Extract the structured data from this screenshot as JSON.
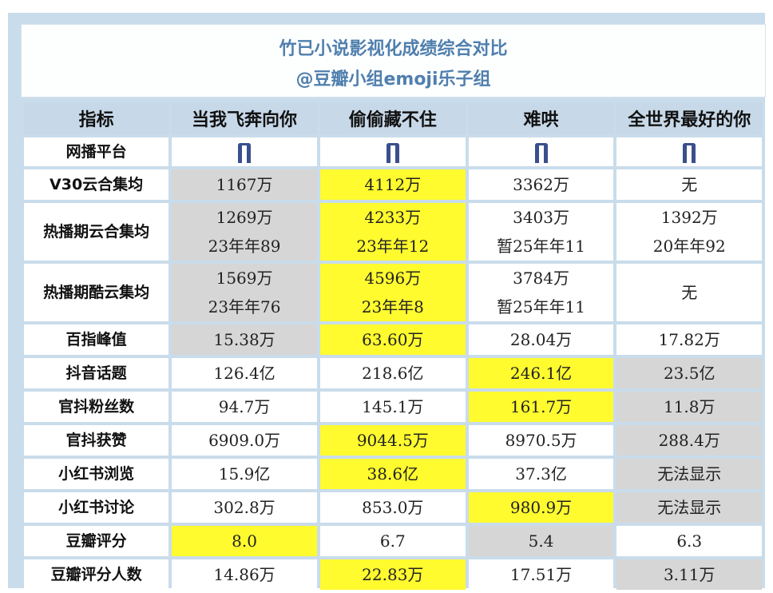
{
  "title": {
    "line1": "竹已小说影视化成绩综合对比",
    "line2": "@豆瓣小组emoji乐子组"
  },
  "headers": [
    "指标",
    "当我飞奔向你",
    "偷偷藏不住",
    "难哄",
    "全世界最好的你"
  ],
  "platform_icon": "tencent-video-icon",
  "colors": {
    "header_bg": "#c7d8e8",
    "frame_bg": "#c9dceb",
    "title_text": "#4f7fae",
    "highlight_best": "#fffb2e",
    "highlight_worst": "#d6d6d6"
  },
  "rows": [
    {
      "metric": "网播平台",
      "cells": [
        {
          "icon": true
        },
        {
          "icon": true
        },
        {
          "icon": true
        },
        {
          "icon": true
        }
      ]
    },
    {
      "metric": "V30云合集均",
      "cells": [
        {
          "lines": [
            "1167万"
          ],
          "hl": "gray"
        },
        {
          "lines": [
            "4112万"
          ],
          "hl": "yellow"
        },
        {
          "lines": [
            "3362万"
          ]
        },
        {
          "lines": [
            "无"
          ]
        }
      ]
    },
    {
      "metric": "热播期云合集均",
      "cells": [
        {
          "lines": [
            "1269万",
            "23年年89"
          ],
          "hl": "gray"
        },
        {
          "lines": [
            "4233万",
            "23年年12"
          ],
          "hl": "yellow"
        },
        {
          "lines": [
            "3403万",
            "暂25年年11"
          ]
        },
        {
          "lines": [
            "1392万",
            "20年年92"
          ]
        }
      ]
    },
    {
      "metric": "热播期酷云集均",
      "cells": [
        {
          "lines": [
            "1569万",
            "23年年76"
          ],
          "hl": "gray"
        },
        {
          "lines": [
            "4596万",
            "23年年8"
          ],
          "hl": "yellow"
        },
        {
          "lines": [
            "3784万",
            "暂25年年11"
          ]
        },
        {
          "lines": [
            "无"
          ]
        }
      ]
    },
    {
      "metric": "百指峰值",
      "cells": [
        {
          "lines": [
            "15.38万"
          ],
          "hl": "gray"
        },
        {
          "lines": [
            "63.60万"
          ],
          "hl": "yellow"
        },
        {
          "lines": [
            "28.04万"
          ]
        },
        {
          "lines": [
            "17.82万"
          ]
        }
      ]
    },
    {
      "metric": "抖音话题",
      "cells": [
        {
          "lines": [
            "126.4亿"
          ]
        },
        {
          "lines": [
            "218.6亿"
          ]
        },
        {
          "lines": [
            "246.1亿"
          ],
          "hl": "yellow"
        },
        {
          "lines": [
            "23.5亿"
          ],
          "hl": "gray"
        }
      ]
    },
    {
      "metric": "官抖粉丝数",
      "cells": [
        {
          "lines": [
            "94.7万"
          ]
        },
        {
          "lines": [
            "145.1万"
          ]
        },
        {
          "lines": [
            "161.7万"
          ],
          "hl": "yellow"
        },
        {
          "lines": [
            "11.8万"
          ],
          "hl": "gray"
        }
      ]
    },
    {
      "metric": "官抖获赞",
      "cells": [
        {
          "lines": [
            "6909.0万"
          ]
        },
        {
          "lines": [
            "9044.5万"
          ],
          "hl": "yellow"
        },
        {
          "lines": [
            "8970.5万"
          ]
        },
        {
          "lines": [
            "288.4万"
          ],
          "hl": "gray"
        }
      ]
    },
    {
      "metric": "小红书浏览",
      "cells": [
        {
          "lines": [
            "15.9亿"
          ]
        },
        {
          "lines": [
            "38.6亿"
          ],
          "hl": "yellow"
        },
        {
          "lines": [
            "37.3亿"
          ]
        },
        {
          "lines": [
            "无法显示"
          ],
          "hl": "gray"
        }
      ]
    },
    {
      "metric": "小红书讨论",
      "cells": [
        {
          "lines": [
            "302.8万"
          ]
        },
        {
          "lines": [
            "853.0万"
          ]
        },
        {
          "lines": [
            "980.9万"
          ],
          "hl": "yellow"
        },
        {
          "lines": [
            "无法显示"
          ],
          "hl": "gray"
        }
      ]
    },
    {
      "metric": "豆瓣评分",
      "cells": [
        {
          "lines": [
            "8.0"
          ],
          "hl": "yellow"
        },
        {
          "lines": [
            "6.7"
          ]
        },
        {
          "lines": [
            "5.4"
          ],
          "hl": "gray"
        },
        {
          "lines": [
            "6.3"
          ]
        }
      ]
    },
    {
      "metric": "豆瓣评分人数",
      "cells": [
        {
          "lines": [
            "14.86万"
          ]
        },
        {
          "lines": [
            "22.83万"
          ],
          "hl": "yellow"
        },
        {
          "lines": [
            "17.51万"
          ]
        },
        {
          "lines": [
            "3.11万"
          ],
          "hl": "gray"
        }
      ]
    }
  ]
}
